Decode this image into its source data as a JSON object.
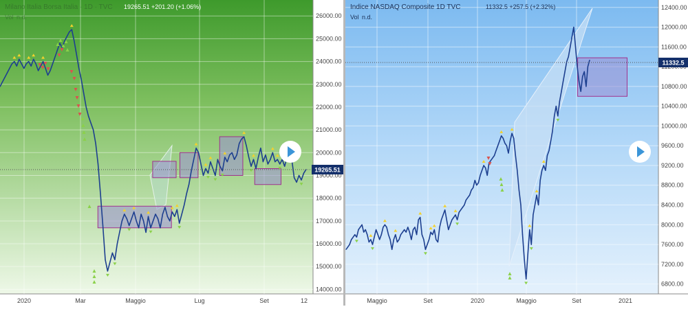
{
  "left_panel": {
    "header_title": "Milano Italia Borsa Italia · 1D · TVC",
    "header_values": "19265.51  +201.20 (+1.06%)",
    "vol_label": "Vol",
    "vol_value": "n.d.",
    "price_tag": "19265.51",
    "play_icon": "play-icon"
  },
  "right_panel": {
    "header_title": "Indice NASDAQ Composite  1D  TVC",
    "header_values": "11332.5  +257.5 (+2.32%)",
    "vol_label": "Vol",
    "vol_value": "n.d.",
    "price_tag": "11332.5",
    "play_icon": "play-icon"
  },
  "colors": {
    "left_bg_top": "#3e9a2c",
    "left_bg_bottom": "#e8f5e0",
    "right_bg_top": "#7fbdf0",
    "right_bg_bottom": "#ddeefb",
    "price_line": "#1d3f8f",
    "box_fill": "#9a90d4",
    "box_stroke": "#a0308c",
    "tag_bg": "#14306b",
    "buy_arrow": "#8bd14a",
    "sell_arrow": "#d9534f",
    "marker": "#f2d12e"
  },
  "chart_data": [
    {
      "type": "line",
      "ylim": [
        13800,
        26700
      ],
      "y_ticks": [
        "26000.00",
        "25000.00",
        "24000.00",
        "23000.00",
        "22000.00",
        "21000.00",
        "20000.00",
        "19000.00",
        "18000.00",
        "17000.00",
        "16000.00",
        "15000.00",
        "14000.00"
      ],
      "x_ticks": [
        "2020",
        "Mar",
        "Maggio",
        "Lug",
        "Set",
        "12"
      ],
      "last_price": 19265.51,
      "series": [
        {
          "values": [
            22900,
            23100,
            23300,
            23500,
            23700,
            23900,
            24000,
            23800,
            24100,
            23900,
            23700,
            23900,
            24000,
            23800,
            24100,
            23900,
            23600,
            23800,
            24000,
            23700,
            23400,
            23600,
            23900,
            24200,
            24500,
            24800,
            24600,
            24900,
            25100,
            25300,
            25400,
            24900,
            24300,
            23700,
            23200,
            22600,
            22000,
            21600,
            21300,
            21000,
            20400,
            19500,
            18200,
            16800,
            15300,
            14800,
            15200,
            15600,
            15300,
            16000,
            16500,
            17000,
            17300,
            17100,
            16800,
            17100,
            17400,
            17000,
            16700,
            17300,
            17000,
            16500,
            17200,
            16700,
            17000,
            17300,
            17100,
            16700,
            17300,
            17600,
            17200,
            17000,
            17400,
            17200,
            17500,
            16900,
            17300,
            17700,
            18200,
            18600,
            19200,
            19700,
            20200,
            20000,
            19500,
            19000,
            19300,
            19100,
            19600,
            19300,
            19000,
            19700,
            19400,
            19200,
            19800,
            19600,
            19900,
            20000,
            19700,
            19900,
            20400,
            20600,
            20700,
            20300,
            19800,
            19400,
            19700,
            19300,
            19800,
            20200,
            19600,
            19900,
            19500,
            19700,
            20000,
            19600,
            19700,
            19500,
            19700,
            19400,
            19800,
            19600,
            19700,
            18900,
            18700,
            19000,
            18800,
            19100,
            19265
          ]
        }
      ],
      "range_boxes": [
        {
          "x0": 0.405,
          "x1": 0.64,
          "y0": 16700,
          "y1": 17650
        },
        {
          "x0": 0.58,
          "x1": 0.655,
          "y0": 18900,
          "y1": 19620
        },
        {
          "x0": 0.667,
          "x1": 0.725,
          "y0": 18900,
          "y1": 20000
        },
        {
          "x0": 0.794,
          "x1": 0.868,
          "y0": 19000,
          "y1": 20700
        },
        {
          "x0": 0.906,
          "x1": 0.99,
          "y0": 18600,
          "y1": 19300
        }
      ]
    },
    {
      "type": "line",
      "ylim": [
        6600,
        12550
      ],
      "y_ticks": [
        "12400.00",
        "12000.00",
        "11600.00",
        "11200.00",
        "10800.00",
        "10400.00",
        "10000.00",
        "9600.00",
        "9200.00",
        "8800.00",
        "8400.00",
        "8000.00",
        "7600.00",
        "7200.00",
        "6800.00"
      ],
      "x_ticks": [
        "Maggio",
        "Set",
        "2020",
        "Maggio",
        "Set",
        "2021"
      ],
      "last_price": 11332.5,
      "series": [
        {
          "values": [
            7500,
            7550,
            7600,
            7700,
            7750,
            7800,
            7750,
            7900,
            7950,
            8000,
            7850,
            7900,
            7800,
            7650,
            7700,
            7600,
            7750,
            7900,
            7800,
            7700,
            7800,
            7950,
            8000,
            7950,
            7800,
            7700,
            7500,
            7700,
            7800,
            7650,
            7700,
            7800,
            7850,
            7900,
            7850,
            7950,
            7850,
            7700,
            7900,
            7950,
            7800,
            8100,
            8150,
            7800,
            7700,
            7500,
            7600,
            7700,
            7850,
            7800,
            7900,
            7700,
            7650,
            7950,
            8100,
            8200,
            8300,
            8100,
            7900,
            8000,
            8100,
            8150,
            8200,
            8100,
            8250,
            8300,
            8350,
            8400,
            8500,
            8550,
            8600,
            8700,
            8750,
            8900,
            8800,
            8850,
            9000,
            9100,
            9200,
            9150,
            9000,
            9250,
            9300,
            9350,
            9400,
            9500,
            9600,
            9700,
            9800,
            9750,
            9650,
            9600,
            9450,
            9700,
            9850,
            9750,
            9400,
            9100,
            8700,
            8400,
            7800,
            7300,
            6900,
            7400,
            7900,
            7600,
            8200,
            8400,
            8600,
            8400,
            8900,
            9100,
            9200,
            9100,
            9400,
            9500,
            9700,
            9900,
            10200,
            10400,
            10200,
            10500,
            10700,
            10900,
            11100,
            11300,
            11400,
            11600,
            11800,
            12000,
            11600,
            11200,
            10900,
            10700,
            11000,
            11100,
            10800,
            11200,
            11332
          ]
        }
      ],
      "range_boxes": [
        {
          "x0": 0.742,
          "x1": 0.9,
          "y0": 10600,
          "y1": 11380
        }
      ]
    }
  ]
}
